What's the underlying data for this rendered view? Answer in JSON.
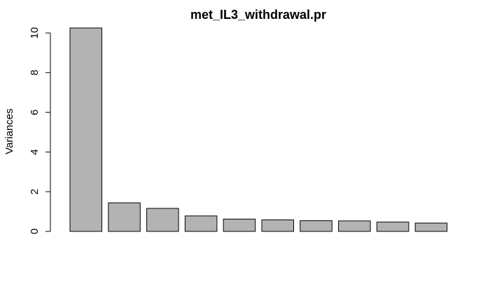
{
  "chart_data": {
    "type": "bar",
    "title": "met_IL3_withdrawal.pr",
    "xlabel": "",
    "ylabel": "Variances",
    "ylim": [
      0,
      10.25
    ],
    "yticks": [
      0,
      2,
      4,
      6,
      8,
      10
    ],
    "grid": false,
    "legend": "none",
    "bar_color": "#b3b3b3",
    "values": [
      10.25,
      1.44,
      1.16,
      0.78,
      0.62,
      0.58,
      0.54,
      0.53,
      0.47,
      0.42
    ]
  }
}
